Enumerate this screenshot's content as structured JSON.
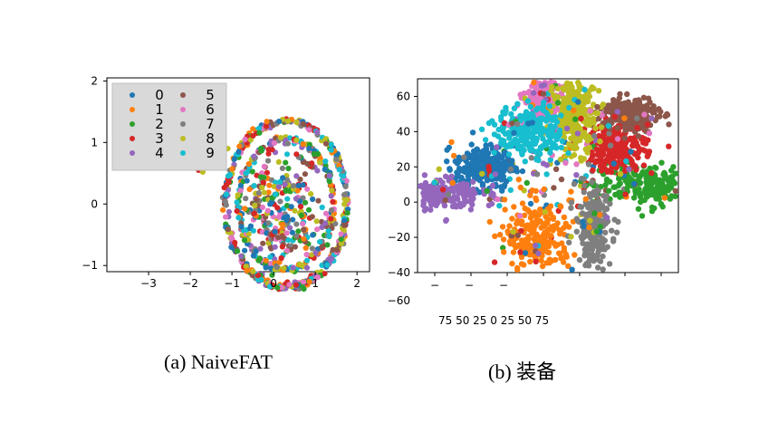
{
  "captions": {
    "a": "(a) NaiveFAT",
    "b": "(b) 装备"
  },
  "legend": {
    "entries": [
      "0",
      "1",
      "2",
      "3",
      "4",
      "5",
      "6",
      "7",
      "8",
      "9"
    ],
    "colors": [
      "#1f77b4",
      "#ff7f0e",
      "#2ca02c",
      "#d62728",
      "#9467bd",
      "#8c564b",
      "#e377c2",
      "#7f7f7f",
      "#bcbd22",
      "#17becf"
    ]
  },
  "chart_data": [
    {
      "type": "scatter",
      "title": "",
      "xlabel": "",
      "ylabel": "",
      "xlim": [
        -4.0,
        2.3
      ],
      "ylim": [
        -1.1,
        2.05
      ],
      "xticks": [
        "−3",
        "−2",
        "−1",
        "0",
        "1",
        "2"
      ],
      "yticks": [
        "2",
        "1",
        "0",
        "−1"
      ],
      "grid": false,
      "legend_position": "top-left",
      "series": [
        {
          "name": "0",
          "description": "mixed on ring"
        },
        {
          "name": "1"
        },
        {
          "name": "2"
        },
        {
          "name": "3"
        },
        {
          "name": "4"
        },
        {
          "name": "5"
        },
        {
          "name": "6"
        },
        {
          "name": "7"
        },
        {
          "name": "8"
        },
        {
          "name": "9"
        }
      ],
      "layout": {
        "circle_center": [
          0.3,
          0.0
        ],
        "circle_radius_x": 1.45,
        "circle_radius_y": 1.35,
        "inner_ring_scale": 0.78,
        "left_tail_y": 0.9
      }
    },
    {
      "type": "scatter",
      "title": "",
      "xlabel": "",
      "ylabel": "",
      "ylim": [
        -40,
        70
      ],
      "yticks": [
        "60",
        "40",
        "20",
        "0",
        "−20",
        "−40",
        "−60"
      ],
      "xticks_text": [
        "−",
        "−",
        "−"
      ],
      "xticks_line": "75 50 25 0 25 50 75",
      "grid": false,
      "series": [
        {
          "name": "0",
          "center": [
            -35,
            20
          ]
        },
        {
          "name": "1",
          "center": [
            -5,
            -20
          ]
        },
        {
          "name": "2",
          "center": [
            55,
            10
          ]
        },
        {
          "name": "3",
          "center": [
            38,
            31
          ]
        },
        {
          "name": "4",
          "center": [
            -65,
            5
          ]
        },
        {
          "name": "5",
          "center": [
            45,
            50
          ]
        },
        {
          "name": "6",
          "center": [
            -3,
            56
          ]
        },
        {
          "name": "7",
          "center": [
            25,
            -15
          ]
        },
        {
          "name": "8",
          "center": [
            15,
            50
          ]
        },
        {
          "name": "9",
          "center": [
            -10,
            40
          ]
        }
      ]
    }
  ]
}
